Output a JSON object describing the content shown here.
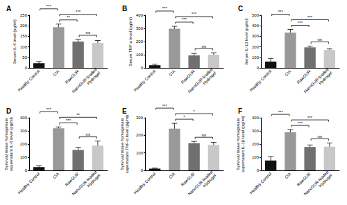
{
  "chart_data": [
    {
      "type": "bar",
      "title": "A",
      "y_label": "Serum IL-6 level (pg/ml)",
      "categories": [
        "Healthy Control",
        "CIA",
        "RawGUR",
        "NanoGUR-loaded\nHydrogel"
      ],
      "values": [
        22,
        193,
        125,
        118
      ],
      "errors": [
        8,
        15,
        10,
        12
      ],
      "colors": [
        "#111111",
        "#999999",
        "#707070",
        "#c8c8c8"
      ],
      "ylim": [
        0,
        250
      ],
      "yticks": [
        0,
        50,
        100,
        150,
        200,
        250
      ],
      "grid": false,
      "annotations": [
        {
          "from": 2,
          "to": 3,
          "text": "ns"
        },
        {
          "from": 1,
          "to": 2,
          "text": "**"
        },
        {
          "from": 1,
          "to": 3,
          "text": "***"
        },
        {
          "from": 0,
          "to": 1,
          "text": "***"
        }
      ]
    },
    {
      "type": "bar",
      "title": "B",
      "y_label": "Serum TNF-α level (pg/ml)",
      "categories": [
        "Healthy Control",
        "CIA",
        "RawGUR",
        "NanoGUR-loaded\nHydrogel"
      ],
      "values": [
        20,
        298,
        95,
        100
      ],
      "errors": [
        8,
        18,
        15,
        15
      ],
      "colors": [
        "#111111",
        "#999999",
        "#707070",
        "#c8c8c8"
      ],
      "ylim": [
        0,
        400
      ],
      "yticks": [
        0,
        100,
        200,
        300,
        400
      ],
      "grid": false,
      "annotations": [
        {
          "from": 2,
          "to": 3,
          "text": "ns"
        },
        {
          "from": 1,
          "to": 2,
          "text": "***"
        },
        {
          "from": 1,
          "to": 3,
          "text": "***"
        },
        {
          "from": 0,
          "to": 1,
          "text": "***"
        }
      ]
    },
    {
      "type": "bar",
      "title": "C",
      "y_label": "Serum IL-1β level (pg/ml)",
      "categories": [
        "Healthy Control",
        "CIA",
        "RawGUR",
        "NanoGUR-loaded\nHydrogel"
      ],
      "values": [
        60,
        335,
        195,
        170
      ],
      "errors": [
        30,
        30,
        12,
        10
      ],
      "colors": [
        "#111111",
        "#999999",
        "#707070",
        "#c8c8c8"
      ],
      "ylim": [
        0,
        500
      ],
      "yticks": [
        0,
        100,
        200,
        300,
        400,
        500
      ],
      "grid": false,
      "annotations": [
        {
          "from": 2,
          "to": 3,
          "text": "ns"
        },
        {
          "from": 1,
          "to": 2,
          "text": "***"
        },
        {
          "from": 1,
          "to": 3,
          "text": "***"
        },
        {
          "from": 0,
          "to": 1,
          "text": "***"
        }
      ]
    },
    {
      "type": "bar",
      "title": "D",
      "y_label": "Synovial tissue homogenate\nsupernatant IL-6 level (pg/ml)",
      "categories": [
        "Healthy Control",
        "CIA",
        "RawGUR",
        "NanoGUR-loaded\nHydrogel"
      ],
      "values": [
        25,
        320,
        155,
        188
      ],
      "errors": [
        10,
        10,
        20,
        35
      ],
      "colors": [
        "#111111",
        "#999999",
        "#707070",
        "#c8c8c8"
      ],
      "ylim": [
        0,
        400
      ],
      "yticks": [
        0,
        100,
        200,
        300,
        400
      ],
      "grid": false,
      "annotations": [
        {
          "from": 2,
          "to": 3,
          "text": "ns"
        },
        {
          "from": 1,
          "to": 2,
          "text": "***"
        },
        {
          "from": 1,
          "to": 3,
          "text": "**"
        },
        {
          "from": 0,
          "to": 1,
          "text": "***"
        }
      ]
    },
    {
      "type": "bar",
      "title": "E",
      "y_label": "Synovial tissue homogenate\nsupernatant TNF-α level (pg/ml)",
      "categories": [
        "Healthy Control",
        "CIA",
        "RawGUR",
        "NanoGUR-loaded\nHydrogel"
      ],
      "values": [
        10,
        238,
        155,
        145
      ],
      "errors": [
        3,
        30,
        10,
        15
      ],
      "colors": [
        "#111111",
        "#999999",
        "#707070",
        "#c8c8c8"
      ],
      "ylim": [
        0,
        300
      ],
      "yticks": [
        0,
        100,
        200,
        300
      ],
      "grid": false,
      "annotations": [
        {
          "from": 2,
          "to": 3,
          "text": "ns"
        },
        {
          "from": 1,
          "to": 2,
          "text": "*"
        },
        {
          "from": 1,
          "to": 3,
          "text": "*"
        },
        {
          "from": 0,
          "to": 1,
          "text": "***"
        }
      ]
    },
    {
      "type": "bar",
      "title": "F",
      "y_label": "Synovial tissue homogenate\nsupernatant IL-1β level (pg/ml)",
      "categories": [
        "Healthy Control",
        "CIA",
        "RawGUR",
        "NanoGUR-loaded\nHydrogel"
      ],
      "values": [
        75,
        290,
        178,
        180
      ],
      "errors": [
        30,
        20,
        15,
        28
      ],
      "colors": [
        "#111111",
        "#999999",
        "#707070",
        "#c8c8c8"
      ],
      "ylim": [
        0,
        400
      ],
      "yticks": [
        0,
        100,
        200,
        300,
        400
      ],
      "grid": false,
      "annotations": [
        {
          "from": 2,
          "to": 3,
          "text": "ns"
        },
        {
          "from": 1,
          "to": 2,
          "text": "***"
        },
        {
          "from": 1,
          "to": 3,
          "text": "***"
        },
        {
          "from": 0,
          "to": 1,
          "text": "***"
        }
      ]
    }
  ]
}
